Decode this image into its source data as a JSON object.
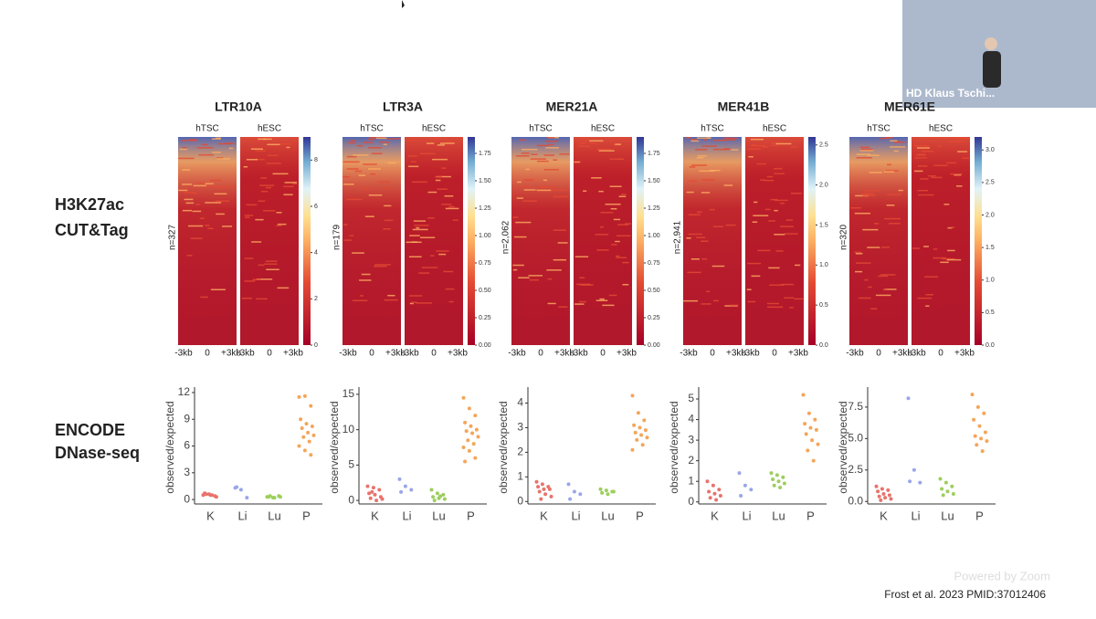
{
  "zoom": {
    "speaker": "HD Klaus Tschi...",
    "watermark": "Powered by Zoom"
  },
  "row_labels": [
    [
      "H3K27ac",
      "CUT&Tag"
    ],
    [
      "ENCODE",
      "DNase-seq"
    ]
  ],
  "citation": "Frost et al. 2023 PMID:37012406",
  "heatmaps": [
    {
      "title": "LTR10A",
      "samples": [
        "hTSC",
        "hESC"
      ],
      "n_label": "n=327",
      "xticks": [
        "-3kb",
        "0",
        "+3kb"
      ],
      "colorbar": {
        "lim": [
          0,
          9
        ],
        "ticks": [
          0,
          2,
          4,
          6,
          8
        ]
      }
    },
    {
      "title": "LTR3A",
      "samples": [
        "hTSC",
        "hESC"
      ],
      "n_label": "n=179",
      "xticks": [
        "-3kb",
        "0",
        "+3kb"
      ],
      "colorbar": {
        "lim": [
          0,
          1.9
        ],
        "ticks": [
          {
            "value": 0,
            "label": "0.00"
          },
          {
            "value": 0.25,
            "label": "0.25"
          },
          {
            "value": 0.5,
            "label": "0.50"
          },
          {
            "value": 0.75,
            "label": "0.75"
          },
          {
            "value": 1,
            "label": "1.00"
          },
          {
            "value": 1.25,
            "label": "1.25"
          },
          {
            "value": 1.5,
            "label": "1.50"
          },
          {
            "value": 1.75,
            "label": "1.75"
          }
        ]
      }
    },
    {
      "title": "MER21A",
      "samples": [
        "hTSC",
        "hESC"
      ],
      "n_label": "n=2,062",
      "xticks": [
        "-3kb",
        "0",
        "+3kb"
      ],
      "colorbar": {
        "lim": [
          0,
          1.9
        ],
        "ticks": [
          {
            "value": 0,
            "label": "0.00"
          },
          {
            "value": 0.25,
            "label": "0.25"
          },
          {
            "value": 0.5,
            "label": "0.50"
          },
          {
            "value": 0.75,
            "label": "0.75"
          },
          {
            "value": 1,
            "label": "1.00"
          },
          {
            "value": 1.25,
            "label": "1.25"
          },
          {
            "value": 1.5,
            "label": "1.50"
          },
          {
            "value": 1.75,
            "label": "1.75"
          }
        ]
      }
    },
    {
      "title": "MER41B",
      "samples": [
        "hTSC",
        "hESC"
      ],
      "n_label": "n=2,941",
      "xticks": [
        "-3kb",
        "0",
        "+3kb"
      ],
      "colorbar": {
        "lim": [
          0,
          2.6
        ],
        "ticks": [
          {
            "value": 0,
            "label": "0.0"
          },
          0.5,
          {
            "value": 1,
            "label": "1.0"
          },
          1.5,
          {
            "value": 2,
            "label": "2.0"
          },
          2.5
        ]
      }
    },
    {
      "title": "MER61E",
      "samples": [
        "hTSC",
        "hESC"
      ],
      "n_label": "n=320",
      "xticks": [
        "-3kb",
        "0",
        "+3kb"
      ],
      "colorbar": {
        "lim": [
          0,
          3.2
        ],
        "ticks": [
          {
            "value": 0,
            "label": "0.0"
          },
          0.5,
          {
            "value": 1,
            "label": "1.0"
          },
          1.5,
          {
            "value": 2,
            "label": "2.0"
          },
          2.5,
          {
            "value": 3,
            "label": "3.0"
          }
        ]
      }
    }
  ],
  "chart_data": [
    {
      "type": "strip",
      "ylabel": "observed/expected",
      "categories": [
        "K",
        "Li",
        "Lu",
        "P"
      ],
      "colors": [
        "#e8736c",
        "#9aa6e8",
        "#9ccf5c",
        "#f4a55a"
      ],
      "ylim": [
        -0.5,
        12.2
      ],
      "yticks": [
        0,
        3,
        6,
        9,
        12
      ],
      "values": [
        [
          0.5,
          0.6,
          0.4,
          0.7,
          0.5,
          0.3,
          0.6,
          0.5
        ],
        [
          1.3,
          1.1,
          0.2,
          1.4
        ],
        [
          0.3,
          0.2,
          0.4,
          0.3,
          0.2,
          0.3,
          0.4
        ],
        [
          11.5,
          11.6,
          10.5,
          9,
          8.5,
          8.2,
          8,
          7.5,
          7.2,
          7,
          6.5,
          6,
          5.5,
          5
        ]
      ]
    },
    {
      "type": "strip",
      "ylabel": "observed/expected",
      "categories": [
        "K",
        "Li",
        "Lu",
        "P"
      ],
      "colors": [
        "#e8736c",
        "#9aa6e8",
        "#9ccf5c",
        "#f4a55a"
      ],
      "ylim": [
        -0.5,
        15.5
      ],
      "yticks": [
        0,
        5,
        10,
        15
      ],
      "values": [
        [
          2,
          1.8,
          1.5,
          1,
          0.8,
          0.5,
          0.3,
          0,
          0.2,
          1.2
        ],
        [
          3,
          2,
          1.5,
          1.2
        ],
        [
          1.5,
          1,
          0.8,
          0.5,
          0.3,
          0.2,
          0,
          0.6
        ],
        [
          14.5,
          13,
          12,
          11,
          10.5,
          10,
          9.8,
          9.5,
          9,
          8.5,
          8,
          7.5,
          7,
          6,
          5.5
        ]
      ]
    },
    {
      "type": "strip",
      "ylabel": "observed/expected",
      "categories": [
        "K",
        "Li",
        "Lu",
        "P"
      ],
      "colors": [
        "#e8736c",
        "#9aa6e8",
        "#9ccf5c",
        "#f4a55a"
      ],
      "ylim": [
        -0.1,
        4.5
      ],
      "yticks": [
        0,
        1,
        2,
        3,
        4
      ],
      "values": [
        [
          0.8,
          0.7,
          0.6,
          0.6,
          0.5,
          0.5,
          0.4,
          0.3,
          0.2,
          0.1
        ],
        [
          0.7,
          0.4,
          0.3,
          0.1
        ],
        [
          0.5,
          0.45,
          0.4,
          0.35,
          0.3,
          0.4
        ],
        [
          4.3,
          3.6,
          3.3,
          3.1,
          3,
          2.9,
          2.8,
          2.7,
          2.6,
          2.5,
          2.3,
          2.1
        ]
      ]
    },
    {
      "type": "strip",
      "ylabel": "observed/expected",
      "categories": [
        "K",
        "Li",
        "Lu",
        "P"
      ],
      "colors": [
        "#e8736c",
        "#9aa6e8",
        "#9ccf5c",
        "#f4a55a"
      ],
      "ylim": [
        -0.1,
        5.4
      ],
      "yticks": [
        0,
        1,
        2,
        3,
        4,
        5
      ],
      "values": [
        [
          1,
          0.8,
          0.6,
          0.5,
          0.4,
          0.3,
          0.2,
          0.1
        ],
        [
          1.4,
          0.8,
          0.6,
          0.3
        ],
        [
          1.4,
          1.3,
          1.2,
          1.1,
          1,
          0.9,
          0.8,
          0.7
        ],
        [
          5.2,
          4.3,
          4,
          3.8,
          3.6,
          3.5,
          3.3,
          3,
          2.8,
          2.5,
          2
        ]
      ]
    },
    {
      "type": "strip",
      "ylabel": "observed/expected",
      "categories": [
        "K",
        "Li",
        "Lu",
        "P"
      ],
      "colors": [
        "#e8736c",
        "#9aa6e8",
        "#9ccf5c",
        "#f4a55a"
      ],
      "ylim": [
        -0.2,
        8.8
      ],
      "yticks": [
        {
          "value": 0,
          "label": "0.0"
        },
        2.5,
        {
          "value": 5,
          "label": "5.0"
        },
        7.5
      ],
      "values": [
        [
          1.2,
          1,
          0.9,
          0.8,
          0.6,
          0.5,
          0.4,
          0.3,
          0.2,
          0.1
        ],
        [
          8.2,
          2.5,
          1.5,
          1.6
        ],
        [
          1.8,
          1.5,
          1.2,
          1,
          0.8,
          0.6,
          0.5
        ],
        [
          8.5,
          7.5,
          7,
          6.5,
          6,
          5.5,
          5.2,
          5,
          4.8,
          4.5,
          4
        ]
      ]
    }
  ]
}
